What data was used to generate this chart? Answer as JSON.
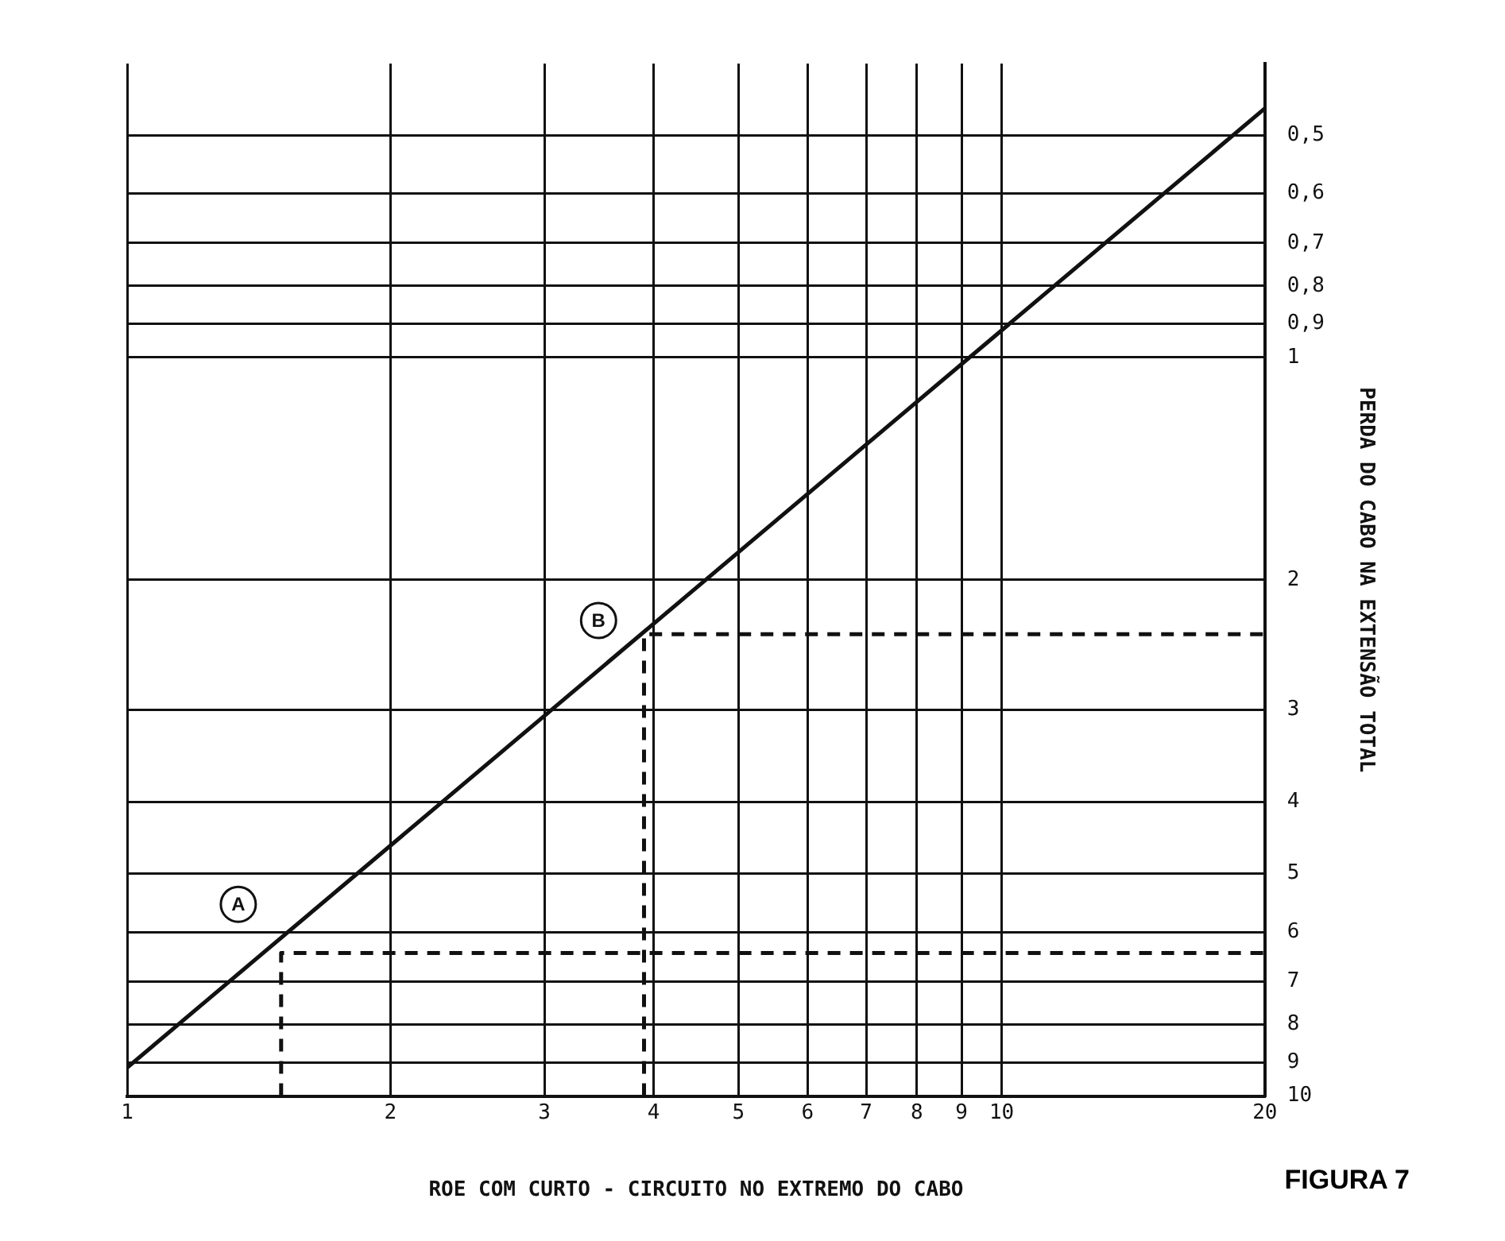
{
  "chart_data": {
    "type": "line",
    "xlabel": "ROE COM CURTO - CIRCUITO NO EXTREMO DO CABO",
    "ylabel": "PERDA DO CABO NA EXTENSÃO TOTAL",
    "series": [
      {
        "color": "#111111",
        "x": [
          1,
          20
        ],
        "values": [
          9.15,
          0.46
        ],
        "line_style": "solid"
      },
      {
        "color": "#111111",
        "x": [
          1.5,
          1.5,
          20
        ],
        "values": [
          10,
          6.4,
          6.4
        ],
        "line_style": "dashed"
      },
      {
        "color": "#111111",
        "x": [
          3.9,
          3.9,
          20
        ],
        "values": [
          10,
          2.37,
          2.37
        ],
        "line_style": "dashed"
      }
    ],
    "log": "xy",
    "xlim": [
      1,
      20
    ],
    "xticks": [
      1,
      2,
      3,
      4,
      5,
      6,
      7,
      8,
      9,
      10,
      20
    ],
    "ylim": [
      10,
      0.4
    ],
    "yticks": [
      {
        "value": 0.5,
        "label": "0,5"
      },
      {
        "value": 0.6,
        "label": "0,6"
      },
      {
        "value": 0.7,
        "label": "0,7"
      },
      {
        "value": 0.8,
        "label": "0,8"
      },
      {
        "value": 0.9,
        "label": "0,9"
      },
      1,
      2,
      3,
      4,
      5,
      6,
      7,
      8,
      9,
      10
    ],
    "grid": true,
    "legend": false,
    "marker": "none",
    "annotations": [
      {
        "text": "A",
        "x": 1.34,
        "y": 5.5
      },
      {
        "text": "B",
        "x": 3.46,
        "y": 2.27
      },
      "FIGURA 7"
    ]
  }
}
